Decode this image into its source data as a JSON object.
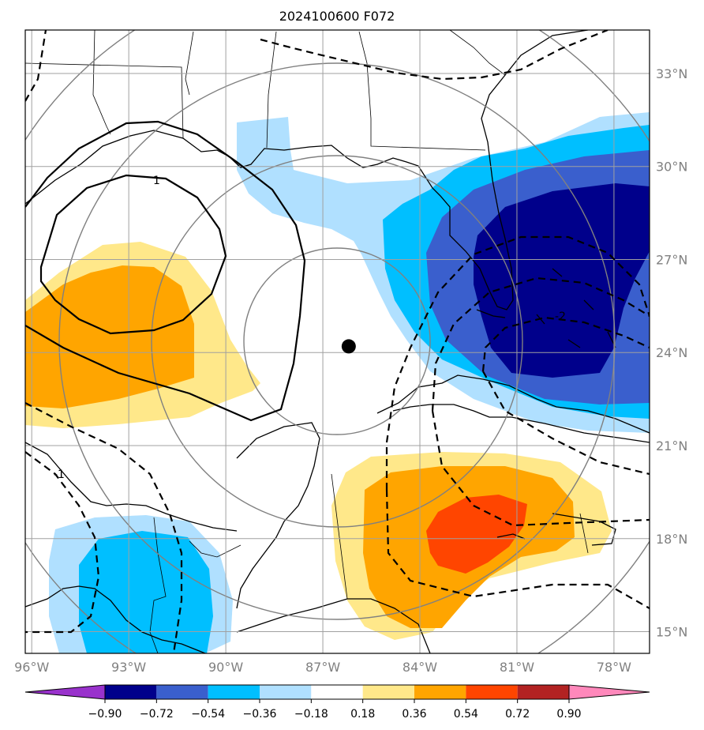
{
  "title": "2024100600 F072",
  "map": {
    "lon_range": [
      -96.2,
      -76.9
    ],
    "lat_range": [
      14.3,
      34.4
    ],
    "lon_ticks": [
      {
        "value": -96,
        "label": "96°W"
      },
      {
        "value": -93,
        "label": "93°W"
      },
      {
        "value": -90,
        "label": "90°W"
      },
      {
        "value": -87,
        "label": "87°W"
      },
      {
        "value": -84,
        "label": "84°W"
      },
      {
        "value": -81,
        "label": "81°W"
      },
      {
        "value": -78,
        "label": "78°W"
      }
    ],
    "lat_ticks": [
      {
        "value": 33,
        "label": "33°N"
      },
      {
        "value": 30,
        "label": "30°N"
      },
      {
        "value": 27,
        "label": "27°N"
      },
      {
        "value": 24,
        "label": "24°N"
      },
      {
        "value": 21,
        "label": "21°N"
      },
      {
        "value": 18,
        "label": "18°N"
      },
      {
        "value": 15,
        "label": "15°N"
      }
    ],
    "grid": true,
    "center_marker": {
      "lon": -86.2,
      "lat": 24.2
    },
    "range_rings": "concentric circles around center marker",
    "contour_labels": [
      "1",
      "-1",
      "-2"
    ]
  },
  "colorbar": {
    "tick_labels": [
      "−0.90",
      "−0.72",
      "−0.54",
      "−0.36",
      "−0.18",
      "0.18",
      "0.36",
      "0.54",
      "0.72",
      "0.90"
    ],
    "colors": [
      "#9932cc",
      "#00008b",
      "#3a5fcd",
      "#00bfff",
      "#b0e0ff",
      "#ffffff",
      "#ffe88a",
      "#ffa500",
      "#ff4500",
      "#b22222",
      "#ff88bb"
    ],
    "extend": "both"
  }
}
